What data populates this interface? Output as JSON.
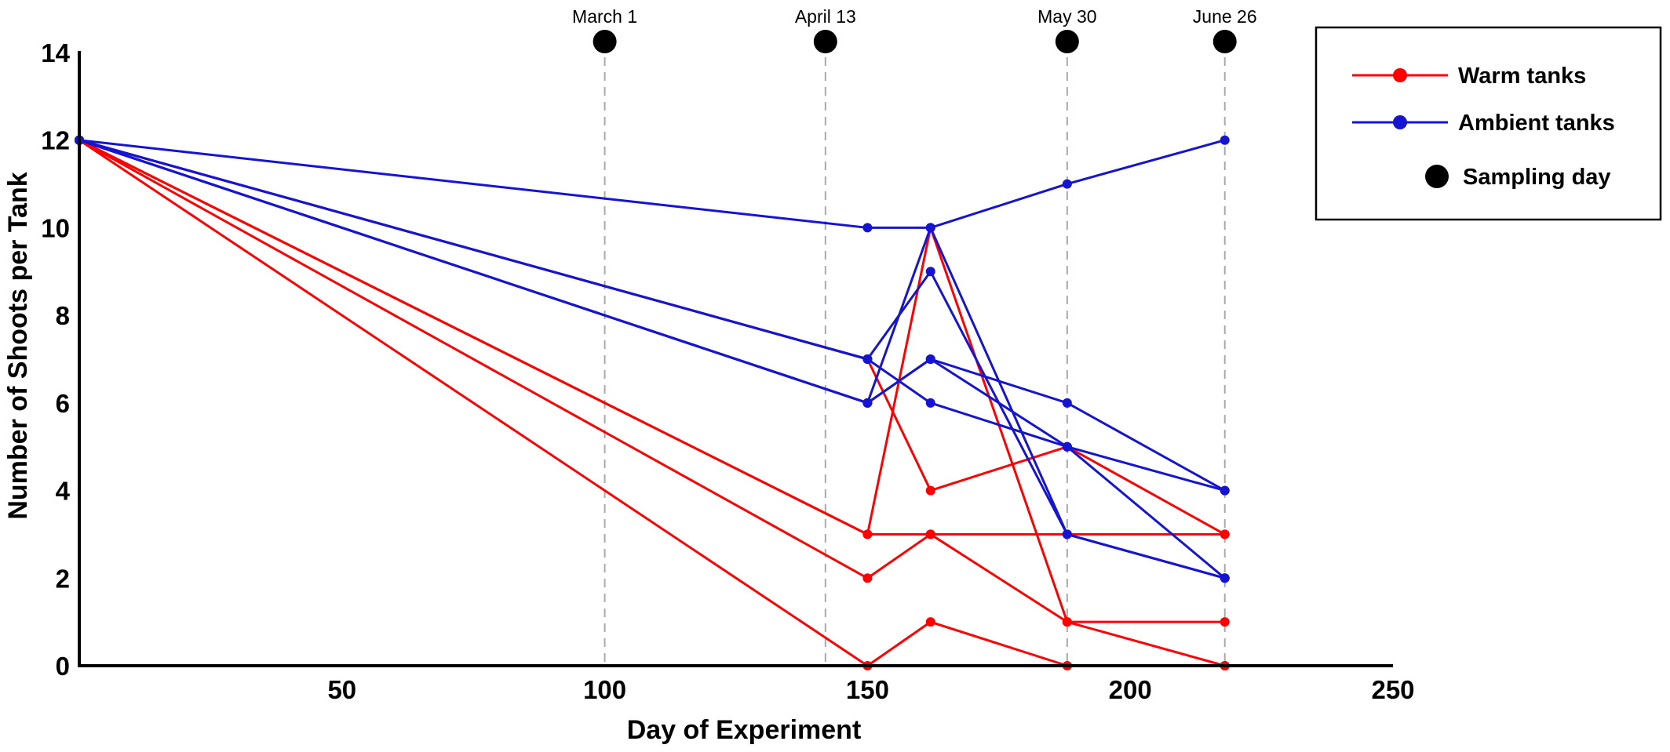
{
  "chart_data": {
    "type": "line",
    "xlabel": "Day of Experiment",
    "ylabel": "Number of Shoots per Tank",
    "xlim": [
      0,
      250
    ],
    "ylim": [
      0,
      14
    ],
    "xticks": [
      50,
      100,
      150,
      200,
      250
    ],
    "yticks": [
      0,
      2,
      4,
      6,
      8,
      10,
      12,
      14
    ],
    "grid": false,
    "legend_position": "top-right",
    "sampling_days": [
      {
        "label": "March 1",
        "day": 100
      },
      {
        "label": "April 13",
        "day": 142
      },
      {
        "label": "May 30",
        "day": 188
      },
      {
        "label": "June 26",
        "day": 218
      }
    ],
    "legend": [
      {
        "label": "Warm tanks",
        "color": "#ff0000",
        "kind": "line"
      },
      {
        "label": "Ambient tanks",
        "color": "#1414d2",
        "kind": "line"
      },
      {
        "label": "Sampling day",
        "color": "#000000",
        "kind": "dot"
      }
    ],
    "x": [
      0,
      150,
      162,
      188,
      218
    ],
    "series": [
      {
        "group": "warm",
        "color": "#ff0000",
        "values": [
          12,
          7,
          4,
          5,
          3
        ]
      },
      {
        "group": "warm",
        "color": "#ff0000",
        "values": [
          12,
          3,
          10,
          1,
          1
        ]
      },
      {
        "group": "warm",
        "color": "#ff0000",
        "values": [
          12,
          3,
          3,
          3,
          3
        ]
      },
      {
        "group": "warm",
        "color": "#ff0000",
        "values": [
          12,
          2,
          3,
          1,
          0
        ]
      },
      {
        "group": "warm",
        "color": "#ff0000",
        "values": [
          12,
          0,
          1,
          0,
          0
        ]
      },
      {
        "group": "ambient",
        "color": "#1414d2",
        "values": [
          12,
          10,
          10,
          11,
          12
        ]
      },
      {
        "group": "ambient",
        "color": "#1414d2",
        "values": [
          12,
          7,
          6,
          5,
          4
        ]
      },
      {
        "group": "ambient",
        "color": "#1414d2",
        "values": [
          12,
          6,
          10,
          3,
          2
        ]
      },
      {
        "group": "ambient",
        "color": "#1414d2",
        "values": [
          12,
          6,
          7,
          6,
          4
        ]
      },
      {
        "group": "ambient",
        "color": "#1414d2",
        "values": [
          12,
          7,
          9,
          3,
          2
        ]
      },
      {
        "group": "ambient",
        "color": "#1414d2",
        "values": [
          12,
          6,
          7,
          5,
          2
        ]
      }
    ]
  }
}
